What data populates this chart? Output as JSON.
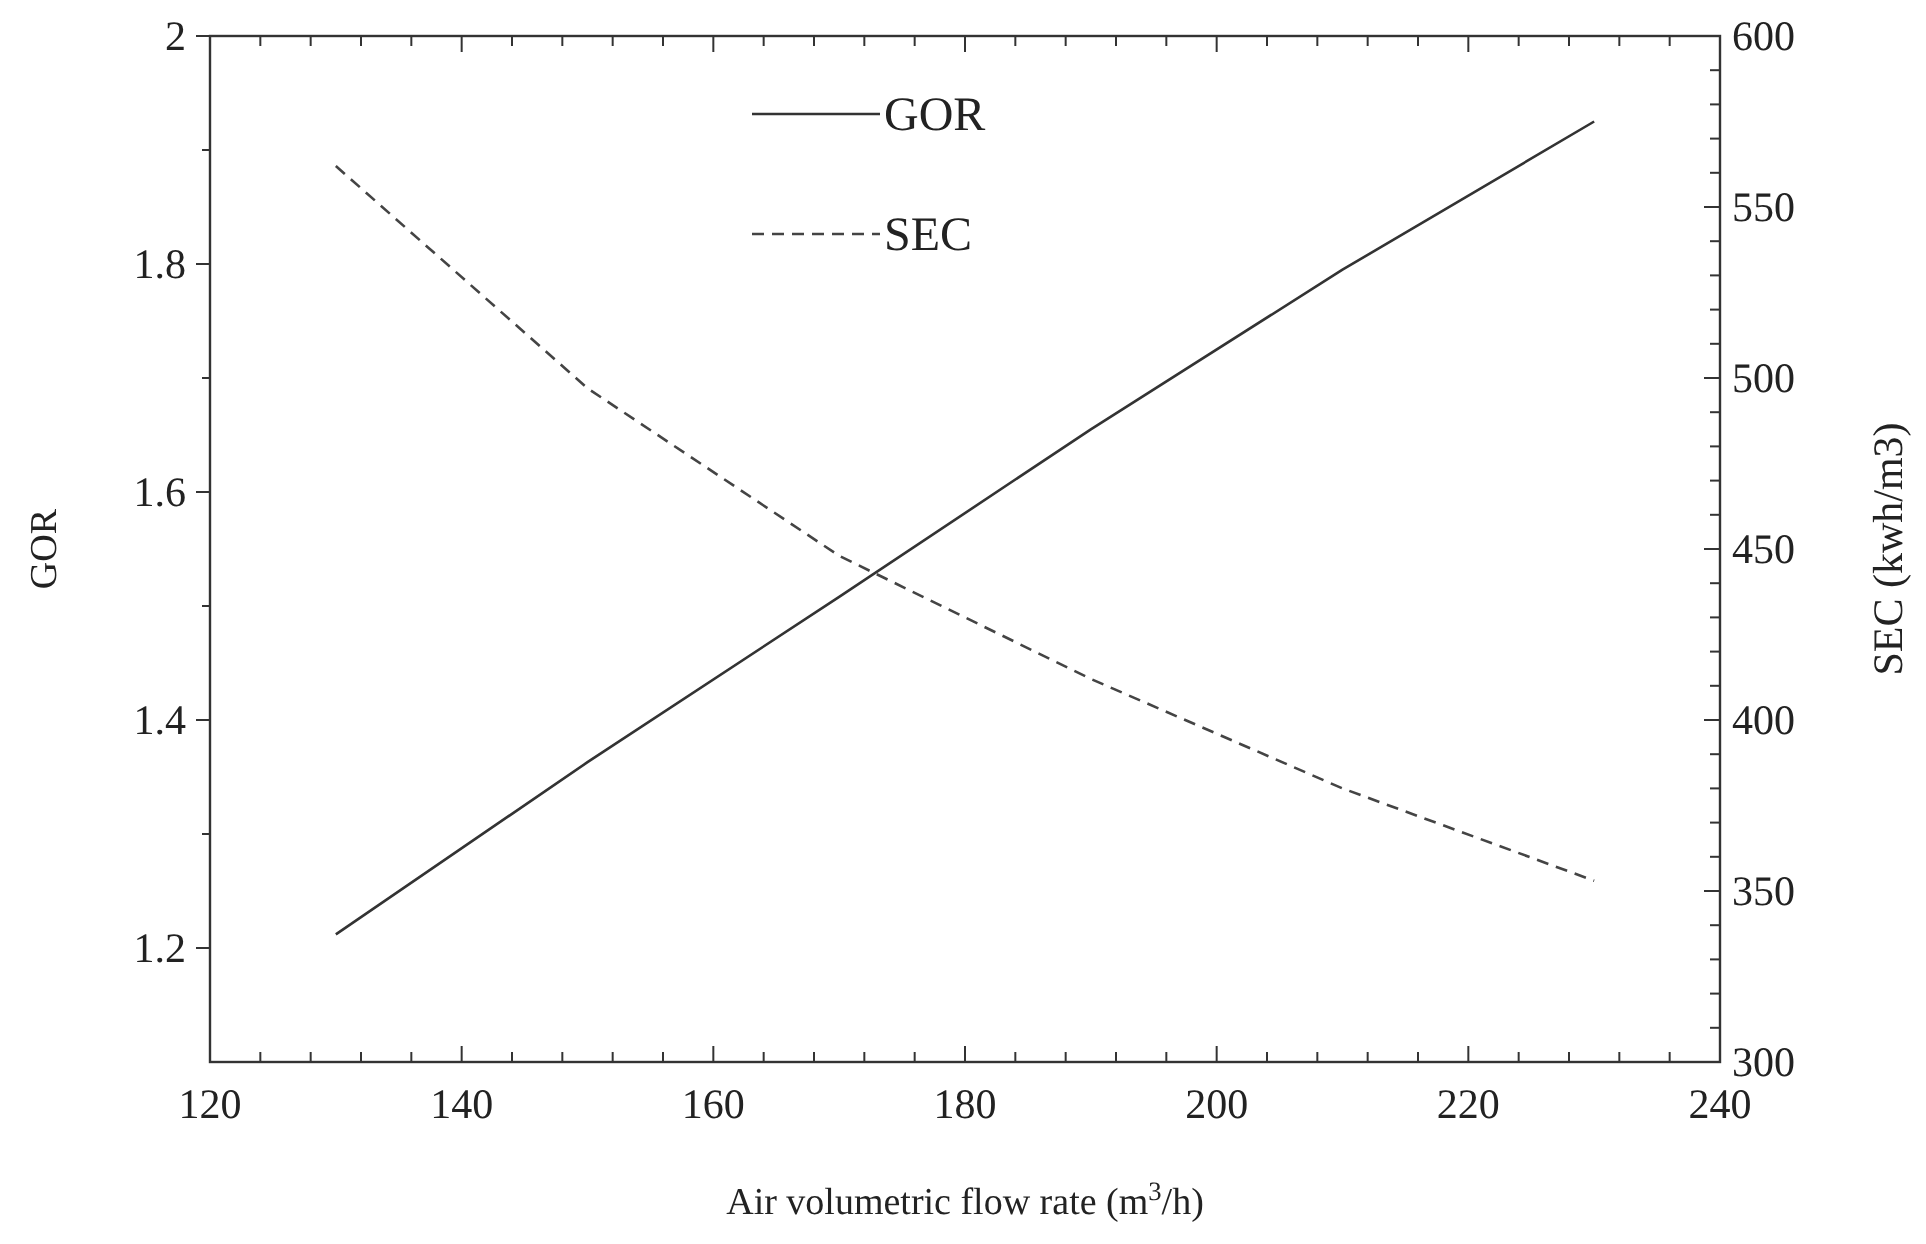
{
  "chart_data": {
    "type": "line",
    "xlabel": "Air volumetric flow rate (m$^{3}$/h)",
    "ylabel": "GOR",
    "y2label": "SEC (kwh/m3)",
    "x": [
      130,
      150,
      170,
      190,
      210,
      230
    ],
    "series": [
      {
        "name": "GOR",
        "color": "#333333",
        "values": [
          1.212,
          1.363,
          1.508,
          1.655,
          1.795,
          1.925
        ],
        "line_style": "solid"
      },
      {
        "name": "SEC",
        "color": "#444444",
        "values": [
          562,
          497,
          448,
          412,
          380,
          353
        ],
        "axis": "y2",
        "line_style": "dashed"
      }
    ],
    "xlim": [
      120,
      240
    ],
    "xticks": [
      120,
      {
        "value": 124,
        "label": null
      },
      {
        "value": 128,
        "label": null
      },
      {
        "value": 132,
        "label": null
      },
      {
        "value": 136,
        "label": null
      },
      140,
      {
        "value": 144,
        "label": null
      },
      {
        "value": 148,
        "label": null
      },
      {
        "value": 152,
        "label": null
      },
      {
        "value": 156,
        "label": null
      },
      160,
      {
        "value": 164,
        "label": null
      },
      {
        "value": 168,
        "label": null
      },
      {
        "value": 172,
        "label": null
      },
      {
        "value": 176,
        "label": null
      },
      180,
      {
        "value": 184,
        "label": null
      },
      {
        "value": 188,
        "label": null
      },
      {
        "value": 192,
        "label": null
      },
      {
        "value": 196,
        "label": null
      },
      200,
      {
        "value": 204,
        "label": null
      },
      {
        "value": 208,
        "label": null
      },
      {
        "value": 212,
        "label": null
      },
      {
        "value": 216,
        "label": null
      },
      220,
      {
        "value": 224,
        "label": null
      },
      {
        "value": 228,
        "label": null
      },
      {
        "value": 232,
        "label": null
      },
      {
        "value": 236,
        "label": null
      },
      240
    ],
    "ylim": [
      1.1,
      2
    ],
    "yticks": [
      1.2,
      {
        "value": 1.3,
        "label": null
      },
      1.4,
      {
        "value": 1.5,
        "label": null
      },
      1.6,
      {
        "value": 1.7,
        "label": null
      },
      1.8,
      {
        "value": 1.9,
        "label": null
      },
      2
    ],
    "y2lim": [
      300,
      600
    ],
    "y2ticks": [
      300,
      {
        "value": 310,
        "label": null
      },
      {
        "value": 320,
        "label": null
      },
      {
        "value": 330,
        "label": null
      },
      {
        "value": 340,
        "label": null
      },
      350,
      {
        "value": 360,
        "label": null
      },
      {
        "value": 370,
        "label": null
      },
      {
        "value": 380,
        "label": null
      },
      {
        "value": 390,
        "label": null
      },
      400,
      {
        "value": 410,
        "label": null
      },
      {
        "value": 420,
        "label": null
      },
      {
        "value": 430,
        "label": null
      },
      {
        "value": 440,
        "label": null
      },
      450,
      {
        "value": 460,
        "label": null
      },
      {
        "value": 470,
        "label": null
      },
      {
        "value": 480,
        "label": null
      },
      {
        "value": 490,
        "label": null
      },
      500,
      {
        "value": 510,
        "label": null
      },
      {
        "value": 520,
        "label": null
      },
      {
        "value": 530,
        "label": null
      },
      {
        "value": 540,
        "label": null
      },
      550,
      {
        "value": 560,
        "label": null
      },
      {
        "value": 570,
        "label": null
      },
      {
        "value": 580,
        "label": null
      },
      {
        "value": 590,
        "label": null
      },
      600
    ],
    "legend": "top",
    "grid": false
  }
}
